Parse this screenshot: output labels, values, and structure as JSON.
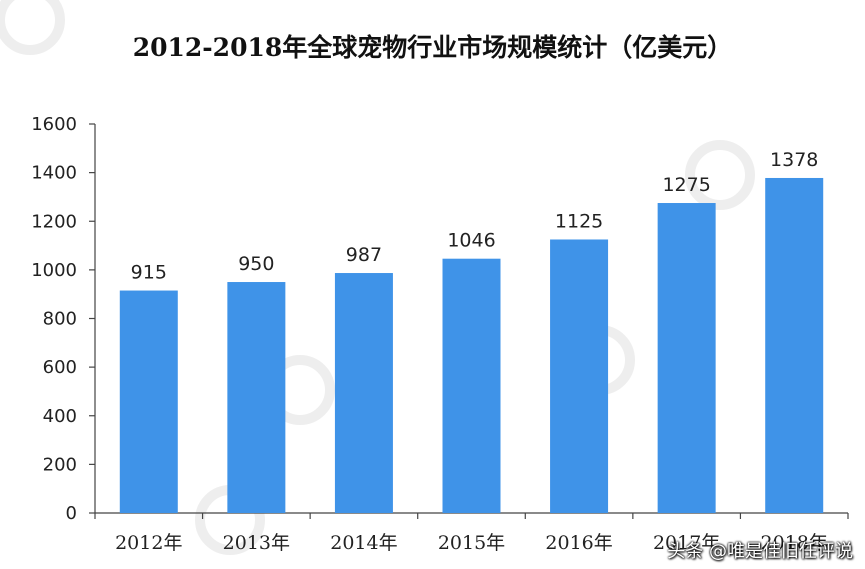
{
  "chart_data": {
    "type": "bar",
    "title": "2012-2018年全球宠物行业市场规模统计（亿美元）",
    "categories": [
      "2012年",
      "2013年",
      "2014年",
      "2015年",
      "2016年",
      "2017年",
      "2018年"
    ],
    "values": [
      915,
      950,
      987,
      1046,
      1125,
      1275,
      1378
    ],
    "y_ticks": [
      "0",
      "200",
      "400",
      "600",
      "800",
      "1000",
      "1200",
      "1400",
      "1600"
    ],
    "ylim": [
      0,
      1600
    ],
    "xlabel": "",
    "ylabel": "",
    "grid": false,
    "legend": "none",
    "bar_color": "#3f93e8"
  },
  "watermark": {
    "credit": "头条 @唯是佳旧任评说"
  }
}
